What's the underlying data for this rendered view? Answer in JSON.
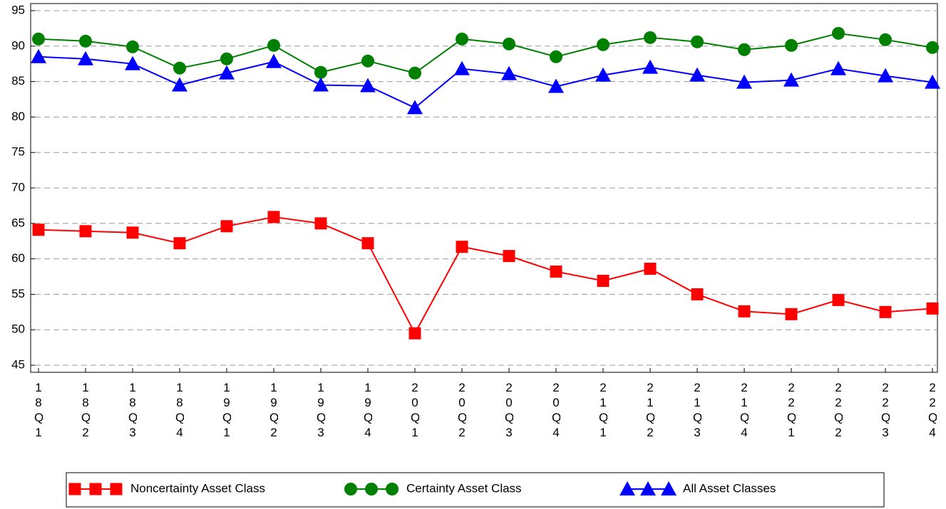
{
  "chart_data": {
    "type": "line",
    "categories": [
      "18Q1",
      "18Q2",
      "18Q3",
      "18Q4",
      "19Q1",
      "19Q2",
      "19Q3",
      "19Q4",
      "20Q1",
      "20Q2",
      "20Q3",
      "20Q4",
      "21Q1",
      "21Q2",
      "21Q3",
      "21Q4",
      "22Q1",
      "22Q2",
      "22Q3",
      "22Q4"
    ],
    "series": [
      {
        "name": "Noncertainty Asset Class",
        "color": "#ff0000",
        "marker": "square",
        "values": [
          64.1,
          63.9,
          63.7,
          62.2,
          64.6,
          65.9,
          65.0,
          62.2,
          49.5,
          61.7,
          60.4,
          58.2,
          56.9,
          58.6,
          55.0,
          52.6,
          52.2,
          54.2,
          52.5,
          53.0
        ]
      },
      {
        "name": "Certainty Asset Class",
        "color": "#008000",
        "marker": "circle",
        "values": [
          91.0,
          90.7,
          89.9,
          86.9,
          88.2,
          90.1,
          86.3,
          87.9,
          86.2,
          91.0,
          90.3,
          88.5,
          90.2,
          91.2,
          90.6,
          89.5,
          90.1,
          91.8,
          90.9,
          89.8
        ]
      },
      {
        "name": "All Asset Classes",
        "color": "#0000ff",
        "marker": "triangle",
        "values": [
          88.5,
          88.2,
          87.5,
          84.5,
          86.2,
          87.8,
          84.5,
          84.4,
          81.3,
          86.8,
          86.1,
          84.3,
          85.9,
          87.0,
          85.9,
          84.9,
          85.2,
          86.8,
          85.8,
          84.9
        ]
      }
    ],
    "ylim": [
      44,
      96
    ],
    "yticks": [
      45,
      50,
      55,
      60,
      65,
      70,
      75,
      80,
      85,
      90,
      95
    ],
    "grid": true
  }
}
